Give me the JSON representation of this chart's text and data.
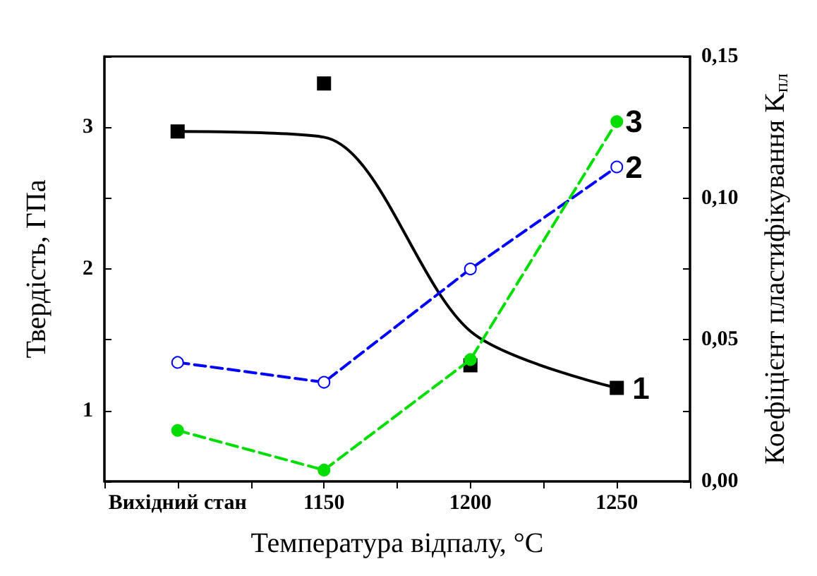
{
  "chart_data": {
    "type": "scatter",
    "xlabel": "Температура відпалу, °C",
    "ylabel": "Твердість, ГПа",
    "y2label": "Коефіцієнт пластифікування K$_{пл}$",
    "categories": [
      "Вихідний стан",
      "1150",
      "1200",
      "1250"
    ],
    "series": [
      {
        "name": "1",
        "color": "#000000",
        "marker": "square",
        "values": [
          2.97,
          3.31,
          1.32,
          1.16
        ]
      },
      {
        "type": "line",
        "color": "#000000",
        "marker": "none",
        "line_style": "solid",
        "values": [
          2.97,
          2.93,
          1.56,
          1.16
        ]
      },
      {
        "name": "2",
        "type": "line",
        "axis": "y2",
        "color": "#0000ff",
        "marker": "circle",
        "line_style": "dashed",
        "values": [
          0.042,
          0.035,
          0.075,
          0.111
        ]
      },
      {
        "name": "3",
        "type": "line",
        "axis": "y2",
        "color": "#00dd00",
        "marker": "circle",
        "line_style": "dashed",
        "values": [
          0.018,
          0.004,
          0.043,
          0.127
        ]
      }
    ],
    "ylim": [
      0.5,
      3.5
    ],
    "yticks": [
      {
        "value": 0.5,
        "label": null
      },
      1,
      {
        "value": 1.5,
        "label": null
      },
      2,
      {
        "value": 2.5,
        "label": null
      },
      3,
      {
        "value": 3.5,
        "label": null
      }
    ],
    "y2lim": [
      0,
      0.15
    ],
    "y2ticks": [
      {
        "value": 0,
        "label": "0,00"
      },
      {
        "value": 0.025,
        "label": null
      },
      {
        "value": 0.05,
        "label": "0,05"
      },
      {
        "value": 0.075,
        "label": null
      },
      {
        "value": 0.1,
        "label": "0,10"
      },
      {
        "value": 0.125,
        "label": null
      },
      {
        "value": 0.15,
        "label": "0,15"
      }
    ],
    "grid": false,
    "legend": false
  }
}
